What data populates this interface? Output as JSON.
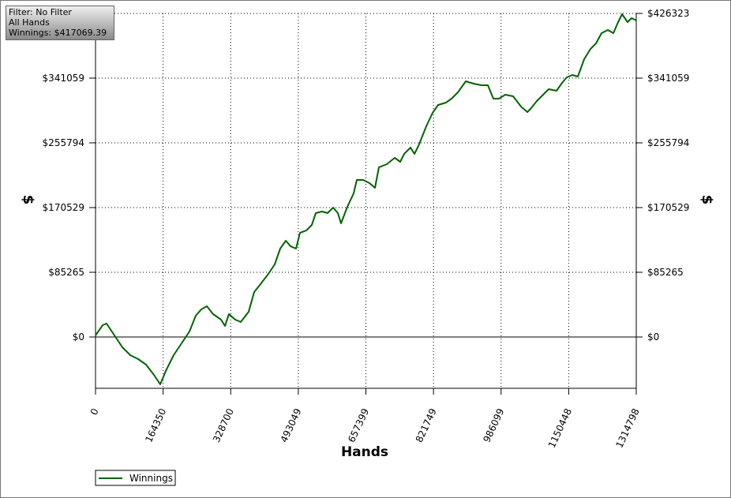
{
  "chart_data": {
    "type": "line",
    "annotations": [
      "Filter: No Filter",
      "All Hands",
      "Winnings: $417069.39"
    ],
    "xlabel": "Hands",
    "ylabel": "$",
    "xlim": [
      0,
      1314798
    ],
    "xticks": [
      0,
      164350,
      328700,
      493049,
      657399,
      821749,
      986099,
      1150448,
      1314798
    ],
    "ylim": [
      -67587,
      426323
    ],
    "yticks": [
      {
        "value": 0,
        "label": "$0"
      },
      {
        "value": 85265,
        "label": "$85265"
      },
      {
        "value": 170529,
        "label": "$170529"
      },
      {
        "value": 255794,
        "label": "$255794"
      },
      {
        "value": 341059,
        "label": "$341059"
      },
      {
        "value": 426323,
        "label": "$426323"
      }
    ],
    "grid": true,
    "legend": "bottom-left",
    "x": [
      0,
      17275,
      26872,
      46066,
      65260,
      84454,
      103648,
      122842,
      142036,
      157391,
      170826,
      190020,
      213053,
      228409,
      243764,
      257200,
      270636,
      285991,
      305185,
      314782,
      324379,
      339734,
      353170,
      372364,
      385800,
      401155,
      420349,
      435704,
      449140,
      462576,
      474093,
      487528,
      497125,
      512480,
      525916,
      535513,
      550868,
      564304,
      577739,
      589255,
      596933,
      612288,
      627643,
      635321,
      650676,
      666032,
      679467,
      689064,
      708258,
      727453,
      740888,
      750485,
      765840,
      775437,
      785034,
      804229,
      819584,
      833020,
      852214,
      865649,
      881004,
      900198,
      919393,
      938587,
      953942,
      967378,
      980813,
      996169,
      1015363,
      1034557,
      1049912,
      1057590,
      1072945,
      1088300,
      1101736,
      1120930,
      1134366,
      1145882,
      1159318,
      1172753,
      1188108,
      1203464,
      1216899,
      1230335,
      1245690,
      1259126,
      1270642,
      1280239,
      1293675,
      1303271,
      1314798
    ],
    "series": [
      {
        "name": "Winnings",
        "color": "#006400",
        "values": [
          2080,
          15597,
          17677,
          2080,
          -13517,
          -23915,
          -29114,
          -36393,
          -49910,
          -62388,
          -44711,
          -23915,
          -5199,
          7279,
          28075,
          36393,
          40552,
          30154,
          22876,
          14557,
          30154,
          22876,
          19756,
          33274,
          59269,
          69667,
          83184,
          95662,
          116458,
          126856,
          119577,
          116458,
          137254,
          140373,
          147652,
          163249,
          165328,
          163249,
          170527,
          163249,
          149731,
          171567,
          189244,
          206920,
          206920,
          202761,
          196522,
          223557,
          227716,
          236035,
          230836,
          241234,
          249552,
          241234,
          251632,
          277627,
          295303,
          305701,
          308821,
          314020,
          322338,
          336895,
          333776,
          331696,
          331696,
          314020,
          314020,
          319219,
          317139,
          303622,
          296343,
          300502,
          310900,
          319219,
          326497,
          324418,
          334816,
          342094,
          345214,
          343134,
          366010,
          379527,
          386806,
          400323,
          404482,
          400323,
          414880,
          425278,
          414880,
          420079,
          417069
        ]
      }
    ]
  }
}
